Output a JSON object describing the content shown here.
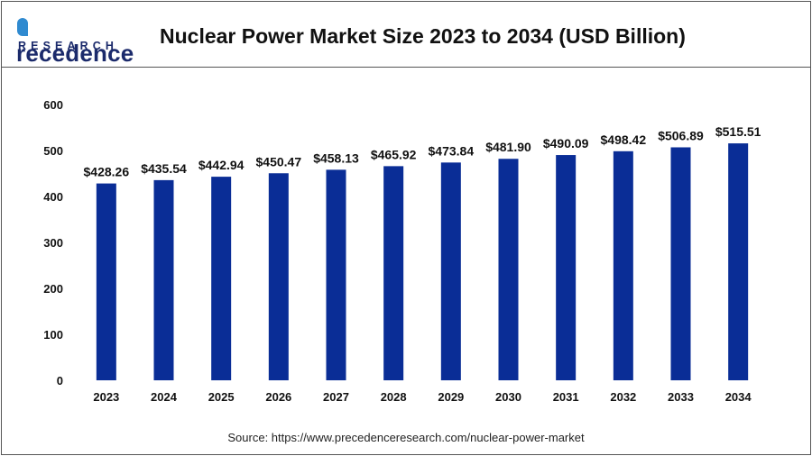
{
  "header": {
    "logo_line1": "recedence",
    "logo_line2": "RESEARCH",
    "title": "Nuclear Power Market Size 2023 to 2034 (USD Billion)"
  },
  "colors": {
    "bar": "#0a2d96",
    "frame": "#555555",
    "text": "#111111"
  },
  "chart_data": {
    "type": "bar",
    "title": "Nuclear Power Market Size 2023 to 2034 (USD Billion)",
    "xlabel": "",
    "ylabel": "",
    "categories": [
      "2023",
      "2024",
      "2025",
      "2026",
      "2027",
      "2028",
      "2029",
      "2030",
      "2031",
      "2032",
      "2033",
      "2034"
    ],
    "values": [
      428.26,
      435.54,
      442.94,
      450.47,
      458.13,
      465.92,
      473.84,
      481.9,
      490.09,
      498.42,
      506.89,
      515.51
    ],
    "data_labels": [
      "$428.26",
      "$435.54",
      "$442.94",
      "$450.47",
      "$458.13",
      "$465.92",
      "$473.84",
      "$481.90",
      "$490.09",
      "$498.42",
      "$506.89",
      "$515.51"
    ],
    "ylim": [
      0,
      600
    ],
    "yticks": [
      0,
      100,
      200,
      300,
      400,
      500,
      600
    ],
    "grid": false,
    "legend": "none"
  },
  "source": "Source: https://www.precedenceresearch.com/nuclear-power-market"
}
